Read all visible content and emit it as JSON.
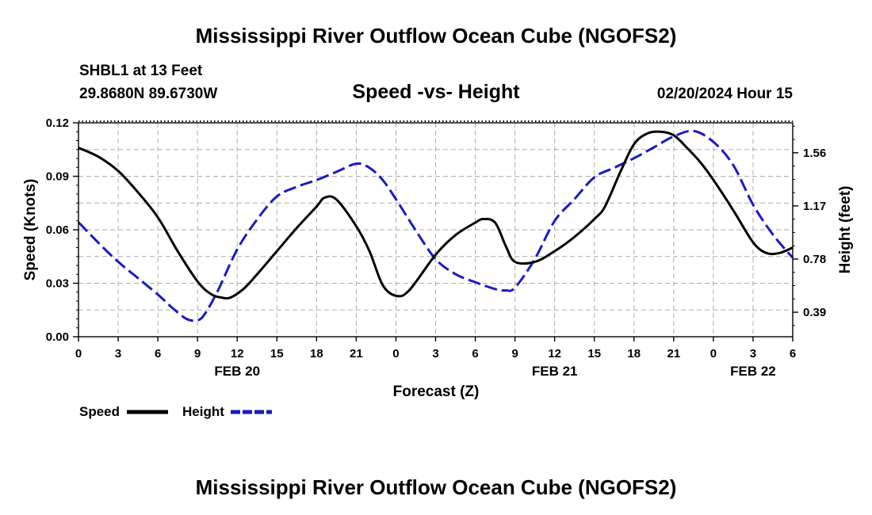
{
  "chart_data": {
    "type": "line",
    "title": "Mississippi River Outflow Ocean Cube (NGOFS2)",
    "subtitle": "Speed -vs- Height",
    "station": "SHBL1 at 13 Feet",
    "position": "29.8680N  89.6730W",
    "datetime": "02/20/2024 Hour 15",
    "xlabel": "Forecast (Z)",
    "ylabel": "Speed (Knots)",
    "y2label": "Height (feet)",
    "xlim": [
      0,
      54
    ],
    "ylim": [
      0,
      0.12
    ],
    "y2lim": [
      0.21,
      1.78
    ],
    "x_ticks": [
      0,
      3,
      6,
      9,
      12,
      15,
      18,
      21,
      24,
      27,
      30,
      33,
      36,
      39,
      42,
      45,
      48,
      51,
      54
    ],
    "x_tick_labels": [
      "0",
      "3",
      "6",
      "9",
      "12",
      "15",
      "18",
      "21",
      "0",
      "3",
      "6",
      "9",
      "12",
      "15",
      "18",
      "21",
      "0",
      "3",
      "6"
    ],
    "date_labels": [
      {
        "x": 12,
        "label": "FEB 20"
      },
      {
        "x": 36,
        "label": "FEB 21"
      },
      {
        "x": 51,
        "label": "FEB 22"
      }
    ],
    "y_ticks": [
      0,
      0.03,
      0.06,
      0.09,
      0.12
    ],
    "y_tick_labels": [
      "0.00",
      "0.03",
      "0.06",
      "0.09",
      "0.12"
    ],
    "y2_ticks": [
      0.39,
      0.78,
      1.17,
      1.56
    ],
    "y2_tick_labels": [
      "0.39",
      "0.78",
      "1.17",
      "1.56"
    ],
    "series": [
      {
        "name": "Speed",
        "axis": "left",
        "color": "#000000",
        "dash": "solid",
        "x": [
          0,
          1.5,
          3,
          4.5,
          6,
          7.5,
          9,
          10,
          10.8,
          11.5,
          12.5,
          13.5,
          15,
          16.5,
          18,
          18.6,
          19.5,
          21,
          22,
          23,
          24,
          25,
          27,
          28.5,
          30,
          30.6,
          31.5,
          32.3,
          33,
          34.5,
          36,
          37.5,
          39,
          39.8,
          41,
          42,
          43,
          44,
          45,
          46,
          47,
          48,
          49.5,
          51,
          52,
          53,
          54
        ],
        "values": [
          0.106,
          0.101,
          0.093,
          0.081,
          0.067,
          0.048,
          0.031,
          0.024,
          0.022,
          0.022,
          0.027,
          0.035,
          0.048,
          0.061,
          0.073,
          0.078,
          0.077,
          0.062,
          0.048,
          0.029,
          0.023,
          0.026,
          0.046,
          0.057,
          0.064,
          0.066,
          0.064,
          0.051,
          0.042,
          0.042,
          0.048,
          0.056,
          0.066,
          0.073,
          0.093,
          0.108,
          0.114,
          0.115,
          0.113,
          0.106,
          0.098,
          0.088,
          0.071,
          0.053,
          0.047,
          0.047,
          0.05
        ]
      },
      {
        "name": "Height",
        "axis": "right",
        "color": "#1a1ac8",
        "dash": "dashed",
        "x": [
          0,
          1.5,
          3,
          4.5,
          6,
          7,
          8,
          8.5,
          9,
          9.5,
          10.5,
          12,
          13.5,
          15,
          16.5,
          18,
          19.5,
          21,
          22,
          23,
          24,
          25.5,
          27,
          28.5,
          30,
          31.5,
          32.3,
          33,
          34.5,
          36,
          37.5,
          39,
          40.5,
          42,
          43.5,
          45,
          46.5,
          48,
          49.5,
          51,
          52.5,
          54
        ],
        "values": [
          1.05,
          0.9,
          0.76,
          0.64,
          0.52,
          0.43,
          0.35,
          0.33,
          0.33,
          0.37,
          0.54,
          0.85,
          1.07,
          1.24,
          1.31,
          1.36,
          1.42,
          1.48,
          1.45,
          1.36,
          1.22,
          0.99,
          0.78,
          0.67,
          0.61,
          0.56,
          0.55,
          0.57,
          0.78,
          1.06,
          1.22,
          1.38,
          1.45,
          1.52,
          1.6,
          1.68,
          1.72,
          1.64,
          1.47,
          1.18,
          0.96,
          0.79
        ]
      }
    ],
    "legend": [
      {
        "label": "Speed",
        "color": "#000000",
        "dash": "solid"
      },
      {
        "label": "Height",
        "color": "#1a1ac8",
        "dash": "dashed"
      }
    ]
  }
}
